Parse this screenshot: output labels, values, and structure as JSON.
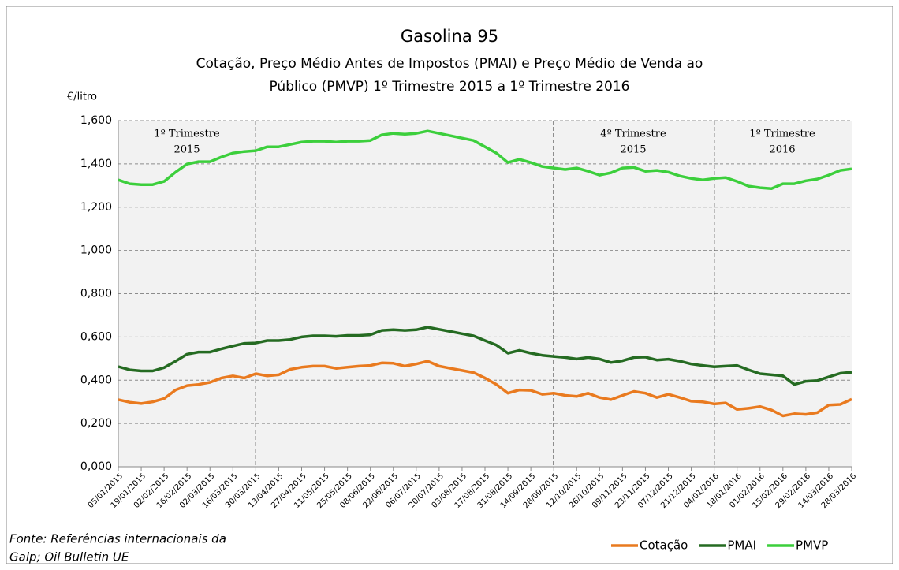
{
  "chart_data": {
    "type": "line",
    "title": "Gasolina 95",
    "subtitle": [
      "Cotação, Preço  Médio Antes de Impostos  (PMAI) e Preço  Médio de Venda ao",
      "Público (PMVP) 1º Trimestre 2015 a 1º Trimestre 2016"
    ],
    "y_label": "€/litro",
    "source": [
      "Fonte: Referências internacionais da",
      "Galp; Oil Bulletin UE"
    ],
    "categories": [
      "05/01/2015",
      null,
      "19/01/2015",
      null,
      "02/02/2015",
      null,
      "16/02/2015",
      null,
      "02/03/2015",
      null,
      "16/03/2015",
      null,
      "30/03/2015",
      null,
      "13/04/2015",
      null,
      "27/04/2015",
      null,
      "11/05/2015",
      null,
      "25/05/2015",
      null,
      "08/06/2015",
      null,
      "22/06/2015",
      null,
      "06/07/2015",
      null,
      "20/07/2015",
      null,
      "03/08/2015",
      null,
      "17/08/2015",
      null,
      "31/08/2015",
      null,
      "14/09/2015",
      null,
      "28/09/2015",
      null,
      "12/10/2015",
      null,
      "26/10/2015",
      null,
      "09/11/2015",
      null,
      "23/11/2015",
      null,
      "07/12/2015",
      null,
      "21/12/2015",
      null,
      "04/01/2016",
      null,
      "18/01/2016",
      null,
      "01/02/2016",
      null,
      "15/02/2016",
      null,
      "29/02/2016",
      null,
      "14/03/2016",
      null,
      "28/03/2016"
    ],
    "series": [
      {
        "name": "Cotação",
        "color": "#e97a1f",
        "values": [
          0.31,
          0.298,
          0.292,
          0.3,
          0.315,
          0.355,
          0.375,
          0.38,
          0.39,
          0.41,
          0.42,
          0.41,
          0.43,
          0.42,
          0.425,
          0.45,
          0.46,
          0.465,
          0.465,
          0.455,
          0.46,
          0.465,
          0.468,
          0.48,
          0.478,
          0.465,
          0.475,
          0.488,
          0.465,
          0.455,
          0.445,
          0.435,
          0.41,
          0.38,
          0.34,
          0.355,
          0.353,
          0.335,
          0.34,
          0.33,
          0.325,
          0.34,
          0.32,
          0.31,
          0.33,
          0.348,
          0.34,
          0.32,
          0.335,
          0.32,
          0.303,
          0.3,
          0.29,
          0.295,
          0.265,
          0.27,
          0.278,
          0.262,
          0.235,
          0.245,
          0.242,
          0.25,
          0.285,
          0.288,
          0.312
        ]
      },
      {
        "name": "PMAI",
        "color": "#256b22",
        "values": [
          0.463,
          0.448,
          0.443,
          0.443,
          0.458,
          0.488,
          0.52,
          0.53,
          0.53,
          0.545,
          0.558,
          0.57,
          0.572,
          0.583,
          0.583,
          0.588,
          0.6,
          0.605,
          0.605,
          0.603,
          0.607,
          0.607,
          0.61,
          0.63,
          0.633,
          0.63,
          0.633,
          0.645,
          0.635,
          0.625,
          0.615,
          0.605,
          0.583,
          0.562,
          0.525,
          0.538,
          0.525,
          0.515,
          0.51,
          0.505,
          0.498,
          0.505,
          0.498,
          0.482,
          0.49,
          0.505,
          0.507,
          0.493,
          0.497,
          0.488,
          0.475,
          0.468,
          0.462,
          0.465,
          0.468,
          0.448,
          0.43,
          0.425,
          0.42,
          0.38,
          0.395,
          0.398,
          0.415,
          0.432,
          0.437
        ]
      },
      {
        "name": "PMVP",
        "color": "#3ccf3c",
        "values": [
          1.326,
          1.308,
          1.304,
          1.304,
          1.319,
          1.362,
          1.399,
          1.41,
          1.41,
          1.432,
          1.45,
          1.457,
          1.461,
          1.479,
          1.479,
          1.49,
          1.501,
          1.505,
          1.505,
          1.501,
          1.505,
          1.505,
          1.508,
          1.534,
          1.541,
          1.537,
          1.541,
          1.552,
          1.541,
          1.53,
          1.519,
          1.508,
          1.479,
          1.45,
          1.406,
          1.421,
          1.406,
          1.388,
          1.381,
          1.374,
          1.381,
          1.366,
          1.348,
          1.359,
          1.381,
          1.384,
          1.366,
          1.37,
          1.362,
          1.344,
          1.333,
          1.326,
          1.333,
          1.337,
          1.319,
          1.297,
          1.29,
          1.286,
          1.308,
          1.308,
          1.322,
          1.33,
          1.348,
          1.37,
          1.377
        ]
      }
    ],
    "ylim": [
      0,
      1.6
    ],
    "yticks": [
      {
        "value": 0,
        "label": "0,000"
      },
      {
        "value": 0.2,
        "label": "0,200"
      },
      {
        "value": 0.4,
        "label": "0,400"
      },
      {
        "value": 0.6,
        "label": "0,600"
      },
      {
        "value": 0.8,
        "label": "0,800"
      },
      {
        "value": 1.0,
        "label": "1,000"
      },
      {
        "value": 1.2,
        "label": "1,200"
      },
      {
        "value": 1.4,
        "label": "1,400"
      },
      {
        "value": 1.6,
        "label": "1,600"
      }
    ],
    "grid": true,
    "period_lines": [
      "30/03/2015",
      "28/09/2015",
      "04/01/2016"
    ],
    "annotations": [
      [
        "1º Trimestre",
        "2015"
      ],
      [
        "4º Trimestre",
        "2015"
      ],
      [
        "1º Trimestre",
        "2016"
      ]
    ],
    "legend": "bottom-right"
  }
}
